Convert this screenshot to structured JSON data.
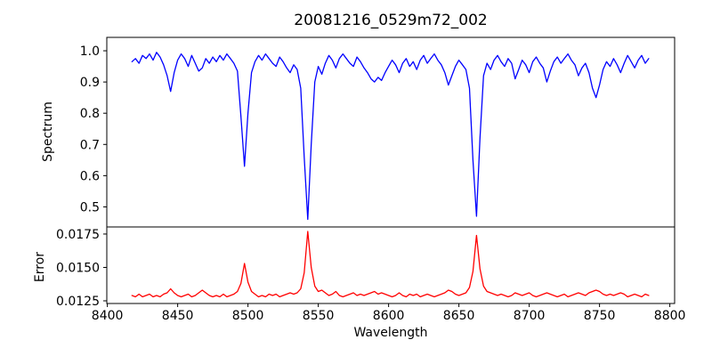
{
  "chart_data": {
    "type": "line",
    "title": "20081216_0529m72_002",
    "xlabel": "Wavelength",
    "grid": false,
    "legend": null,
    "xlim": [
      8399.6,
      8803.4
    ],
    "xticks": [
      8400,
      8450,
      8500,
      8550,
      8600,
      8650,
      8700,
      8750,
      8800
    ],
    "xtick_labels": [
      "8400",
      "8450",
      "8500",
      "8550",
      "8600",
      "8650",
      "8700",
      "8750",
      "8800"
    ],
    "x_start": 8417.5,
    "x_step": 2.5,
    "panels": [
      {
        "name": "spectrum",
        "ylabel": "Spectrum",
        "color": "#0000ff",
        "ylim": [
          0.4357,
          1.0429
        ],
        "yticks": [
          1.0,
          0.9,
          0.8,
          0.7,
          0.6,
          0.5
        ],
        "ytick_labels": [
          "1.0",
          "0.9",
          "0.8",
          "0.7",
          "0.6",
          "0.5"
        ],
        "values": [
          0.965,
          0.975,
          0.96,
          0.985,
          0.975,
          0.99,
          0.97,
          0.995,
          0.98,
          0.955,
          0.92,
          0.87,
          0.93,
          0.97,
          0.99,
          0.975,
          0.95,
          0.985,
          0.96,
          0.935,
          0.945,
          0.975,
          0.96,
          0.98,
          0.965,
          0.985,
          0.97,
          0.99,
          0.975,
          0.96,
          0.935,
          0.79,
          0.63,
          0.8,
          0.93,
          0.965,
          0.985,
          0.97,
          0.99,
          0.975,
          0.96,
          0.95,
          0.98,
          0.965,
          0.945,
          0.93,
          0.955,
          0.94,
          0.88,
          0.66,
          0.46,
          0.7,
          0.9,
          0.95,
          0.925,
          0.96,
          0.985,
          0.97,
          0.945,
          0.975,
          0.99,
          0.975,
          0.96,
          0.95,
          0.98,
          0.965,
          0.945,
          0.93,
          0.91,
          0.9,
          0.915,
          0.905,
          0.93,
          0.95,
          0.97,
          0.955,
          0.93,
          0.96,
          0.975,
          0.95,
          0.965,
          0.94,
          0.97,
          0.985,
          0.96,
          0.975,
          0.99,
          0.97,
          0.955,
          0.93,
          0.89,
          0.92,
          0.95,
          0.97,
          0.955,
          0.94,
          0.88,
          0.65,
          0.47,
          0.72,
          0.92,
          0.96,
          0.94,
          0.97,
          0.985,
          0.965,
          0.95,
          0.975,
          0.96,
          0.91,
          0.94,
          0.97,
          0.955,
          0.93,
          0.965,
          0.98,
          0.96,
          0.945,
          0.9,
          0.935,
          0.965,
          0.98,
          0.96,
          0.975,
          0.99,
          0.97,
          0.955,
          0.92,
          0.945,
          0.96,
          0.93,
          0.88,
          0.85,
          0.89,
          0.94,
          0.965,
          0.95,
          0.975,
          0.955,
          0.93,
          0.96,
          0.985,
          0.965,
          0.945,
          0.97,
          0.985,
          0.96,
          0.975
        ]
      },
      {
        "name": "error",
        "ylabel": "Error",
        "color": "#ff0000",
        "ylim": [
          0.0123,
          0.01803
        ],
        "yticks": [
          0.0175,
          0.015,
          0.0125
        ],
        "ytick_labels": [
          "0.0175",
          "0.0150",
          "0.0125"
        ],
        "values": [
          0.0129,
          0.0128,
          0.013,
          0.0128,
          0.0129,
          0.013,
          0.0128,
          0.0129,
          0.0128,
          0.013,
          0.0131,
          0.0134,
          0.0131,
          0.0129,
          0.0128,
          0.0129,
          0.013,
          0.0128,
          0.0129,
          0.0131,
          0.0133,
          0.0131,
          0.0129,
          0.0128,
          0.0129,
          0.0128,
          0.013,
          0.0128,
          0.0129,
          0.013,
          0.0132,
          0.0138,
          0.0153,
          0.0139,
          0.0132,
          0.013,
          0.0128,
          0.0129,
          0.0128,
          0.013,
          0.0129,
          0.013,
          0.0128,
          0.0129,
          0.013,
          0.0131,
          0.013,
          0.0131,
          0.0134,
          0.0146,
          0.0177,
          0.015,
          0.0136,
          0.0132,
          0.0133,
          0.0131,
          0.0129,
          0.013,
          0.0132,
          0.0129,
          0.0128,
          0.0129,
          0.013,
          0.0131,
          0.0129,
          0.013,
          0.0129,
          0.013,
          0.0131,
          0.0132,
          0.013,
          0.0131,
          0.013,
          0.0129,
          0.0128,
          0.0129,
          0.0131,
          0.0129,
          0.0128,
          0.013,
          0.0129,
          0.013,
          0.0128,
          0.0129,
          0.013,
          0.0129,
          0.0128,
          0.0129,
          0.013,
          0.0131,
          0.0133,
          0.0132,
          0.013,
          0.0129,
          0.013,
          0.0131,
          0.0135,
          0.0147,
          0.0174,
          0.0149,
          0.0136,
          0.0132,
          0.0131,
          0.013,
          0.0129,
          0.013,
          0.0129,
          0.0128,
          0.0129,
          0.0131,
          0.013,
          0.0129,
          0.013,
          0.0131,
          0.0129,
          0.0128,
          0.0129,
          0.013,
          0.0131,
          0.013,
          0.0129,
          0.0128,
          0.0129,
          0.013,
          0.0128,
          0.0129,
          0.013,
          0.0131,
          0.013,
          0.0129,
          0.0131,
          0.0132,
          0.0133,
          0.0132,
          0.013,
          0.0129,
          0.013,
          0.0129,
          0.013,
          0.0131,
          0.013,
          0.0128,
          0.0129,
          0.013,
          0.0129,
          0.0128,
          0.013,
          0.0129
        ]
      }
    ],
    "style": {
      "frame_color": "#000000",
      "background": "#ffffff",
      "tick_font_px": 14,
      "line_width": 1.3
    }
  }
}
